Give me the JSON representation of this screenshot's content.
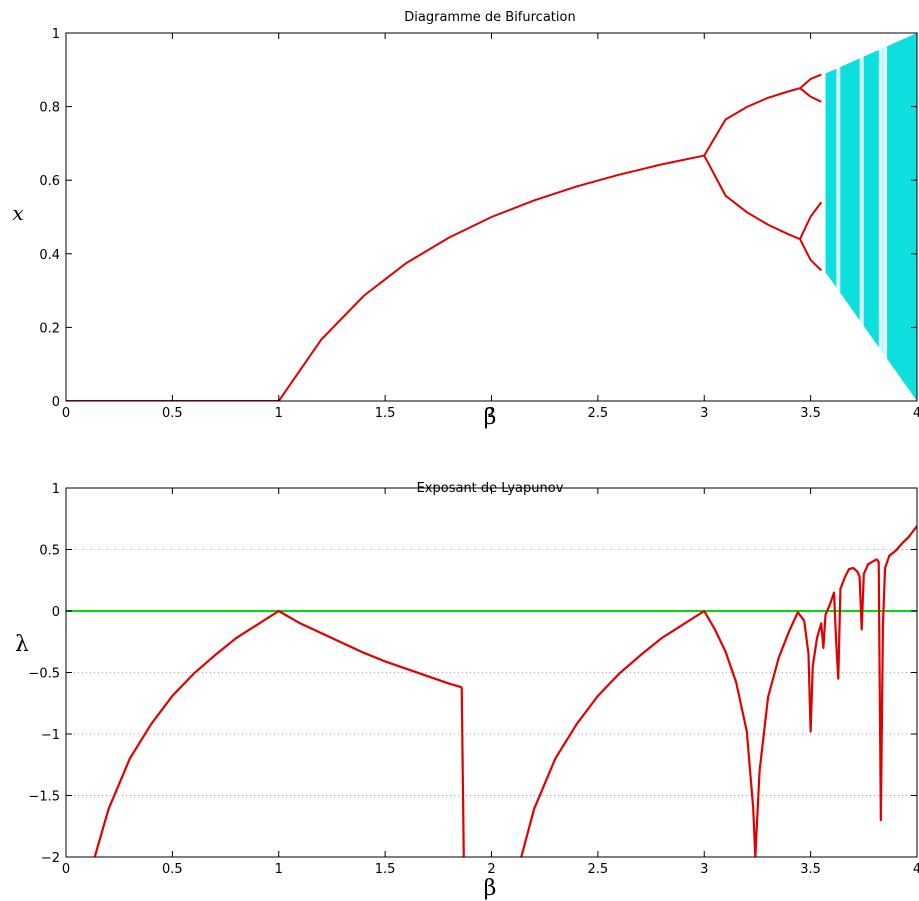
{
  "chart_data": [
    {
      "type": "scatter",
      "title": "Diagramme de Bifurcation",
      "xlabel": "β",
      "ylabel": "x",
      "xlim": [
        0,
        4
      ],
      "ylim": [
        0,
        1
      ],
      "x_ticks": [
        0,
        0.5,
        1,
        1.5,
        2,
        2.5,
        3,
        3.5,
        4
      ],
      "y_ticks": [
        0,
        0.2,
        0.4,
        0.6,
        0.8,
        1
      ],
      "x_tick_labels": [
        "0",
        "0.5",
        "1",
        "1.5",
        "2",
        "2.5",
        "3",
        "3.5",
        "4"
      ],
      "y_tick_labels": [
        "0",
        "0.2",
        "0.4",
        "0.6",
        "0.8",
        "1"
      ],
      "grid": false,
      "series": [
        {
          "color": "#e00000",
          "points": [
            [
              0,
              0
            ],
            [
              0.5,
              0
            ],
            [
              1,
              0
            ],
            [
              1.2,
              0.167
            ],
            [
              1.4,
              0.286
            ],
            [
              1.6,
              0.375
            ],
            [
              1.8,
              0.444
            ],
            [
              2.0,
              0.5
            ],
            [
              2.2,
              0.545
            ],
            [
              2.4,
              0.583
            ],
            [
              2.6,
              0.615
            ],
            [
              2.8,
              0.643
            ],
            [
              3.0,
              0.667
            ],
            [
              3.1,
              0.558
            ],
            [
              3.1,
              0.765
            ],
            [
              3.2,
              0.513
            ],
            [
              3.2,
              0.799
            ],
            [
              3.3,
              0.479
            ],
            [
              3.3,
              0.824
            ],
            [
              3.4,
              0.452
            ],
            [
              3.4,
              0.842
            ],
            [
              3.45,
              0.44
            ],
            [
              3.45,
              0.85
            ],
            [
              3.5,
              0.383
            ],
            [
              3.5,
              0.501
            ],
            [
              3.5,
              0.827
            ],
            [
              3.5,
              0.875
            ],
            [
              3.55,
              0.355
            ],
            [
              3.55,
              0.54
            ],
            [
              3.55,
              0.813
            ],
            [
              3.55,
              0.887
            ]
          ]
        },
        {
          "color": "#00dddd",
          "band": {
            "x_start": 3.57,
            "x_end": 4.0,
            "y_low_start": 0.35,
            "y_low_end": 0.0,
            "y_high_start": 0.89,
            "y_high_end": 1.0
          },
          "windows": [
            3.63,
            3.74,
            3.83,
            3.85
          ]
        }
      ]
    },
    {
      "type": "line",
      "title": "Exposant de Lyapunov",
      "xlabel": "β",
      "ylabel": "λ",
      "xlim": [
        0,
        4
      ],
      "ylim": [
        -2,
        1
      ],
      "x_ticks": [
        0,
        0.5,
        1,
        1.5,
        2,
        2.5,
        3,
        3.5,
        4
      ],
      "y_ticks": [
        -2,
        -1.5,
        -1,
        -0.5,
        0,
        0.5,
        1
      ],
      "x_tick_labels": [
        "0",
        "0.5",
        "1",
        "1.5",
        "2",
        "2.5",
        "3",
        "3.5",
        "4"
      ],
      "y_tick_labels": [
        "−2",
        "−1.5",
        "−1",
        "−0.5",
        "0",
        "0.5",
        "1"
      ],
      "grid": "horizontal-dotted",
      "reference_line": {
        "y": 0,
        "color": "#00dd00"
      },
      "series": [
        {
          "color": "#e00000",
          "points": [
            [
              0.135,
              -2.0
            ],
            [
              0.2,
              -1.61
            ],
            [
              0.3,
              -1.2
            ],
            [
              0.4,
              -0.92
            ],
            [
              0.5,
              -0.69
            ],
            [
              0.6,
              -0.51
            ],
            [
              0.7,
              -0.36
            ],
            [
              0.8,
              -0.22
            ],
            [
              0.9,
              -0.11
            ],
            [
              1.0,
              0.0
            ],
            [
              1.1,
              -0.1
            ],
            [
              1.2,
              -0.18
            ],
            [
              1.3,
              -0.26
            ],
            [
              1.4,
              -0.34
            ],
            [
              1.5,
              -0.41
            ],
            [
              1.6,
              -0.47
            ],
            [
              1.7,
              -0.53
            ],
            [
              1.8,
              -0.59
            ],
            [
              1.86,
              -0.62
            ],
            [
              2.14,
              -2.0
            ],
            [
              2.2,
              -1.61
            ],
            [
              2.3,
              -1.2
            ],
            [
              2.4,
              -0.92
            ],
            [
              2.5,
              -0.69
            ],
            [
              2.6,
              -0.51
            ],
            [
              2.7,
              -0.36
            ],
            [
              2.8,
              -0.22
            ],
            [
              2.9,
              -0.11
            ],
            [
              3.0,
              0.0
            ],
            [
              3.05,
              -0.15
            ],
            [
              3.1,
              -0.33
            ],
            [
              3.15,
              -0.58
            ],
            [
              3.2,
              -0.98
            ],
            [
              3.23,
              -1.6
            ],
            [
              3.24,
              -2.0
            ],
            [
              3.26,
              -1.3
            ],
            [
              3.3,
              -0.7
            ],
            [
              3.35,
              -0.38
            ],
            [
              3.4,
              -0.16
            ],
            [
              3.44,
              -0.01
            ],
            [
              3.47,
              -0.08
            ],
            [
              3.49,
              -0.35
            ],
            [
              3.5,
              -0.98
            ],
            [
              3.51,
              -0.45
            ],
            [
              3.53,
              -0.22
            ],
            [
              3.55,
              -0.1
            ],
            [
              3.56,
              -0.3
            ],
            [
              3.57,
              -0.03
            ],
            [
              3.59,
              0.05
            ],
            [
              3.61,
              0.15
            ],
            [
              3.62,
              -0.25
            ],
            [
              3.63,
              -0.55
            ],
            [
              3.64,
              0.18
            ],
            [
              3.66,
              0.27
            ],
            [
              3.68,
              0.34
            ],
            [
              3.7,
              0.35
            ],
            [
              3.72,
              0.32
            ],
            [
              3.73,
              0.28
            ],
            [
              3.74,
              -0.15
            ],
            [
              3.75,
              0.3
            ],
            [
              3.77,
              0.38
            ],
            [
              3.79,
              0.4
            ],
            [
              3.81,
              0.42
            ],
            [
              3.82,
              0.4
            ],
            [
              3.83,
              -1.7
            ],
            [
              3.84,
              -0.1
            ],
            [
              3.85,
              0.35
            ],
            [
              3.87,
              0.45
            ],
            [
              3.9,
              0.49
            ],
            [
              3.93,
              0.55
            ],
            [
              3.96,
              0.6
            ],
            [
              4.0,
              0.69
            ]
          ]
        }
      ]
    }
  ]
}
